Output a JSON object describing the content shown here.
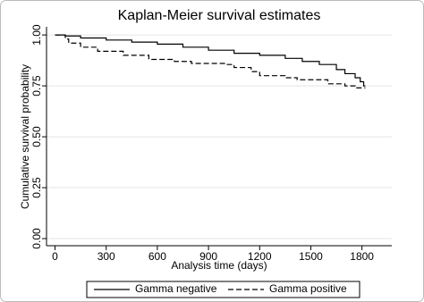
{
  "chart_data": {
    "type": "step",
    "title": "Kaplan-Meier survival estimates",
    "x_label": "Analysis time (days)",
    "y_label": "Cumulative survival probability",
    "xlim": [
      -50,
      1975
    ],
    "xticks": [
      0,
      300,
      600,
      900,
      1200,
      1500,
      1800
    ],
    "ylim": [
      -0.035,
      1.04
    ],
    "yticks": [
      {
        "value": 0,
        "label": "0.00"
      },
      {
        "value": 0.25,
        "label": "0.25"
      },
      {
        "value": 0.5,
        "label": "0.50"
      },
      {
        "value": 0.75,
        "label": "0.75"
      },
      {
        "value": 1,
        "label": "1.00"
      }
    ],
    "grid": true,
    "legend": "bottom",
    "series": [
      {
        "name": "Gamma negative",
        "color": "#000000",
        "dash": "solid",
        "x": [
          0,
          60,
          150,
          300,
          450,
          600,
          750,
          900,
          1050,
          1200,
          1350,
          1450,
          1550,
          1650,
          1700,
          1760,
          1790,
          1810,
          1820
        ],
        "values": [
          1,
          0.995,
          0.985,
          0.975,
          0.965,
          0.955,
          0.94,
          0.925,
          0.91,
          0.9,
          0.885,
          0.87,
          0.855,
          0.83,
          0.81,
          0.79,
          0.77,
          0.75,
          0.75
        ]
      },
      {
        "name": "Gamma positive",
        "color": "#000000",
        "dash": "dashed",
        "x": [
          0,
          60,
          80,
          150,
          250,
          400,
          550,
          700,
          800,
          1000,
          1050,
          1150,
          1200,
          1350,
          1420,
          1600,
          1700,
          1760,
          1820
        ],
        "values": [
          1,
          0.98,
          0.96,
          0.94,
          0.92,
          0.9,
          0.88,
          0.87,
          0.86,
          0.855,
          0.84,
          0.82,
          0.8,
          0.79,
          0.78,
          0.76,
          0.75,
          0.74,
          0.74
        ]
      }
    ]
  }
}
